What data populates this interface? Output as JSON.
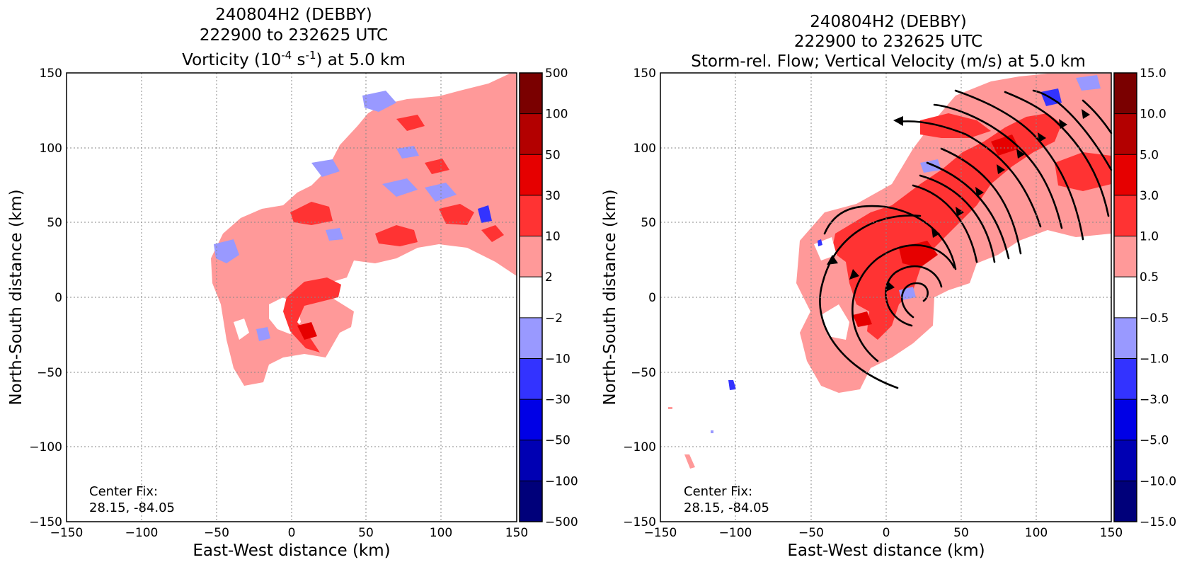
{
  "chart_data": [
    {
      "type": "heatmap",
      "title_lines": [
        "240804H2 (DEBBY)",
        "222900 to 232625 UTC"
      ],
      "title_var_pre": "Vorticity (10",
      "title_var_sup1": "-4",
      "title_var_mid": " s",
      "title_var_sup2": "-1",
      "title_var_post": ") at 5.0 km",
      "xlabel": "East-West distance (km)",
      "ylabel": "North-South distance (km)",
      "xlim": [
        -150,
        150
      ],
      "ylim": [
        -150,
        150
      ],
      "xticks": [
        "−150",
        "−100",
        "−50",
        "0",
        "50",
        "100",
        "150"
      ],
      "yticks": [
        "−150",
        "−100",
        "−50",
        "0",
        "50",
        "100",
        "150"
      ],
      "grid": true,
      "annotation": [
        "Center Fix:",
        "28.15, -84.05"
      ],
      "colorbar_labels": [
        "500",
        "100",
        "50",
        "30",
        "10",
        "2",
        "−2",
        "−10",
        "−30",
        "−50",
        "−100",
        "−500"
      ],
      "colorbar_colors": [
        "#7a0000",
        "#b30000",
        "#e60000",
        "#ff3333",
        "#ff9999",
        "#ffffff",
        "#9999ff",
        "#3333ff",
        "#0000e6",
        "#0000b3",
        "#00007a"
      ]
    },
    {
      "type": "heatmap",
      "title_lines": [
        "240804H2 (DEBBY)",
        "222900 to 232625 UTC",
        "Storm-rel. Flow; Vertical Velocity (m/s) at 5.0 km"
      ],
      "xlabel": "East-West distance (km)",
      "ylabel": "North-South distance (km)",
      "xlim": [
        -150,
        150
      ],
      "ylim": [
        -150,
        150
      ],
      "xticks": [
        "−150",
        "−100",
        "−50",
        "0",
        "50",
        "100",
        "150"
      ],
      "yticks": [
        "−150",
        "−100",
        "−50",
        "0",
        "50",
        "100",
        "150"
      ],
      "grid": true,
      "annotation": [
        "Center Fix:",
        "28.15, -84.05"
      ],
      "colorbar_labels": [
        "15.0",
        "10.0",
        "5.0",
        "3.0",
        "1.0",
        "0.5",
        "−0.5",
        "−1.0",
        "−3.0",
        "−5.0",
        "−10.0",
        "−15.0"
      ],
      "colorbar_colors": [
        "#7a0000",
        "#b30000",
        "#e60000",
        "#ff3333",
        "#ff9999",
        "#ffffff",
        "#9999ff",
        "#3333ff",
        "#0000e6",
        "#0000b3",
        "#00007a"
      ]
    }
  ]
}
